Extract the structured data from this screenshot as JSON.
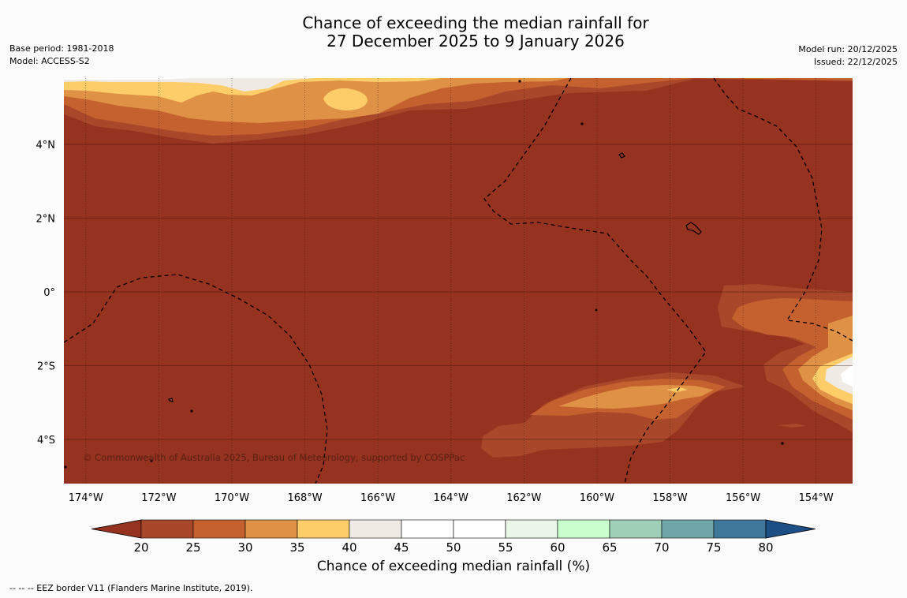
{
  "title": {
    "line1": "Chance of exceeding the median rainfall for",
    "line2": "27 December 2025 to 9 January 2026"
  },
  "meta_left": {
    "base_period": "Base period: 1981-2018",
    "model": "Model: ACCESS-S2"
  },
  "meta_right": {
    "model_run": "Model run: 20/12/2025",
    "issued": "Issued: 22/12/2025"
  },
  "map": {
    "lon_range": [
      -174.6,
      -153.0
    ],
    "lat_range": [
      -5.2,
      5.8
    ],
    "lon_ticks": [
      {
        "value": -174,
        "label": "174°W"
      },
      {
        "value": -172,
        "label": "172°W"
      },
      {
        "value": -170,
        "label": "170°W"
      },
      {
        "value": -168,
        "label": "168°W"
      },
      {
        "value": -166,
        "label": "166°W"
      },
      {
        "value": -164,
        "label": "164°W"
      },
      {
        "value": -162,
        "label": "162°W"
      },
      {
        "value": -160,
        "label": "160°W"
      },
      {
        "value": -158,
        "label": "158°W"
      },
      {
        "value": -156,
        "label": "156°W"
      },
      {
        "value": -154,
        "label": "154°W"
      }
    ],
    "lat_ticks": [
      {
        "value": 4,
        "label": "4°N"
      },
      {
        "value": 2,
        "label": "2°N"
      },
      {
        "value": 0,
        "label": "0°"
      },
      {
        "value": -2,
        "label": "2°S"
      },
      {
        "value": -4,
        "label": "4°S"
      }
    ],
    "base_color": "#953220",
    "copyright": "© Commonwealth of Australia 2025, Bureau of Meteorology, supported by COSPPac"
  },
  "colorbar": {
    "colors": [
      "#a9472a",
      "#c5612e",
      "#df9245",
      "#fdcd6a",
      "#efebe4",
      "#ffffff",
      "#ffffff",
      "#eaf6e8",
      "#c9ffcc",
      "#9fd0b7",
      "#70a6a7",
      "#3f789a"
    ],
    "under_color": "#953220",
    "over_color": "#1b4f86",
    "tick_labels": [
      "20",
      "25",
      "30",
      "35",
      "40",
      "45",
      "50",
      "55",
      "60",
      "65",
      "70",
      "75",
      "80"
    ],
    "label": "Chance of exceeding median rainfall (%)"
  },
  "footnote": "--  --  -- EEZ border V11 (Flanders Marine Institute, 2019)."
}
